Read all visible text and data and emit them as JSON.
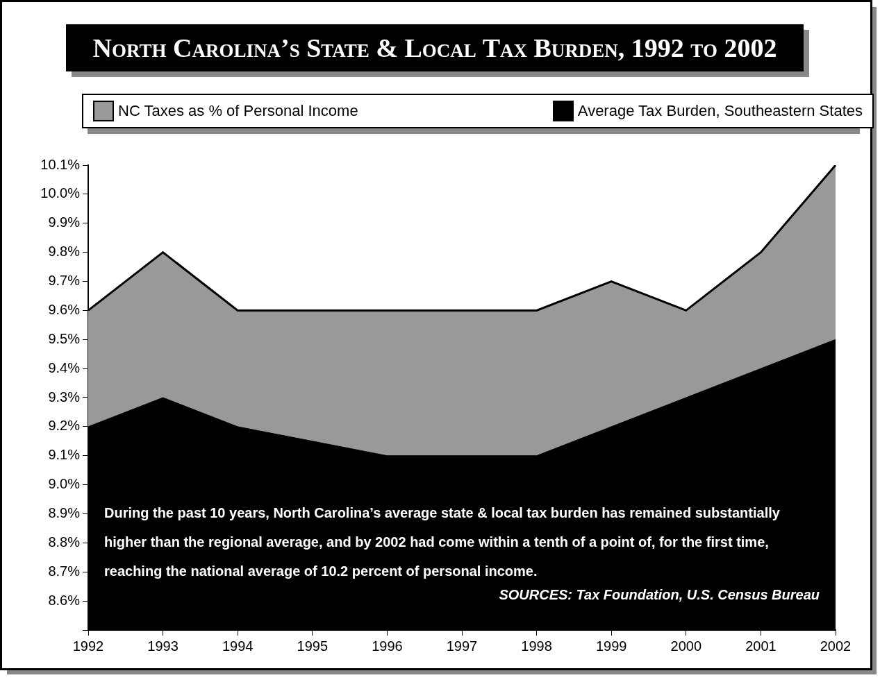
{
  "chart_data": {
    "type": "area",
    "title": "North Carolina’s State & Local Tax Burden, 1992 to 2002",
    "categories": [
      "1992",
      "1993",
      "1994",
      "1995",
      "1996",
      "1997",
      "1998",
      "1999",
      "2000",
      "2001",
      "2002"
    ],
    "series": [
      {
        "name": "NC Taxes as % of Personal Income",
        "color": "#999999",
        "values": [
          9.6,
          9.8,
          9.6,
          9.6,
          9.6,
          9.6,
          9.6,
          9.7,
          9.6,
          9.8,
          10.1
        ]
      },
      {
        "name": "Average Tax Burden, Southeastern States",
        "color": "#000000",
        "values": [
          9.2,
          9.3,
          9.2,
          9.15,
          9.1,
          9.1,
          9.1,
          9.2,
          9.3,
          9.4,
          9.5
        ]
      }
    ],
    "ylim": [
      8.5,
      10.1
    ],
    "yticks": [
      {
        "value": 8.5,
        "label": null
      },
      {
        "value": 8.6,
        "label": "8.6%"
      },
      {
        "value": 8.7,
        "label": "8.7%"
      },
      {
        "value": 8.8,
        "label": "8.8%"
      },
      {
        "value": 8.9,
        "label": "8.9%"
      },
      {
        "value": 9.0,
        "label": "9.0%"
      },
      {
        "value": 9.1,
        "label": "9.1%"
      },
      {
        "value": 9.2,
        "label": "9.2%"
      },
      {
        "value": 9.3,
        "label": "9.3%"
      },
      {
        "value": 9.4,
        "label": "9.4%"
      },
      {
        "value": 9.5,
        "label": "9.5%"
      },
      {
        "value": 9.6,
        "label": "9.6%"
      },
      {
        "value": 9.7,
        "label": "9.7%"
      },
      {
        "value": 9.8,
        "label": "9.8%"
      },
      {
        "value": 9.9,
        "label": "9.9%"
      },
      {
        "value": 10.0,
        "label": "10.0%"
      },
      {
        "value": 10.1,
        "label": "10.1%"
      }
    ],
    "grid": false,
    "legend": "top",
    "marker": "none",
    "annotations": [
      "During the past 10 years, North Carolina’s average state & local tax burden has remained substantially higher than the regional average, and by 2002 had come within a tenth of a point of, for the first time, reaching the national average of 10.2 percent of personal income.",
      "SOURCES: Tax Foundation, U.S. Census Bureau"
    ]
  }
}
